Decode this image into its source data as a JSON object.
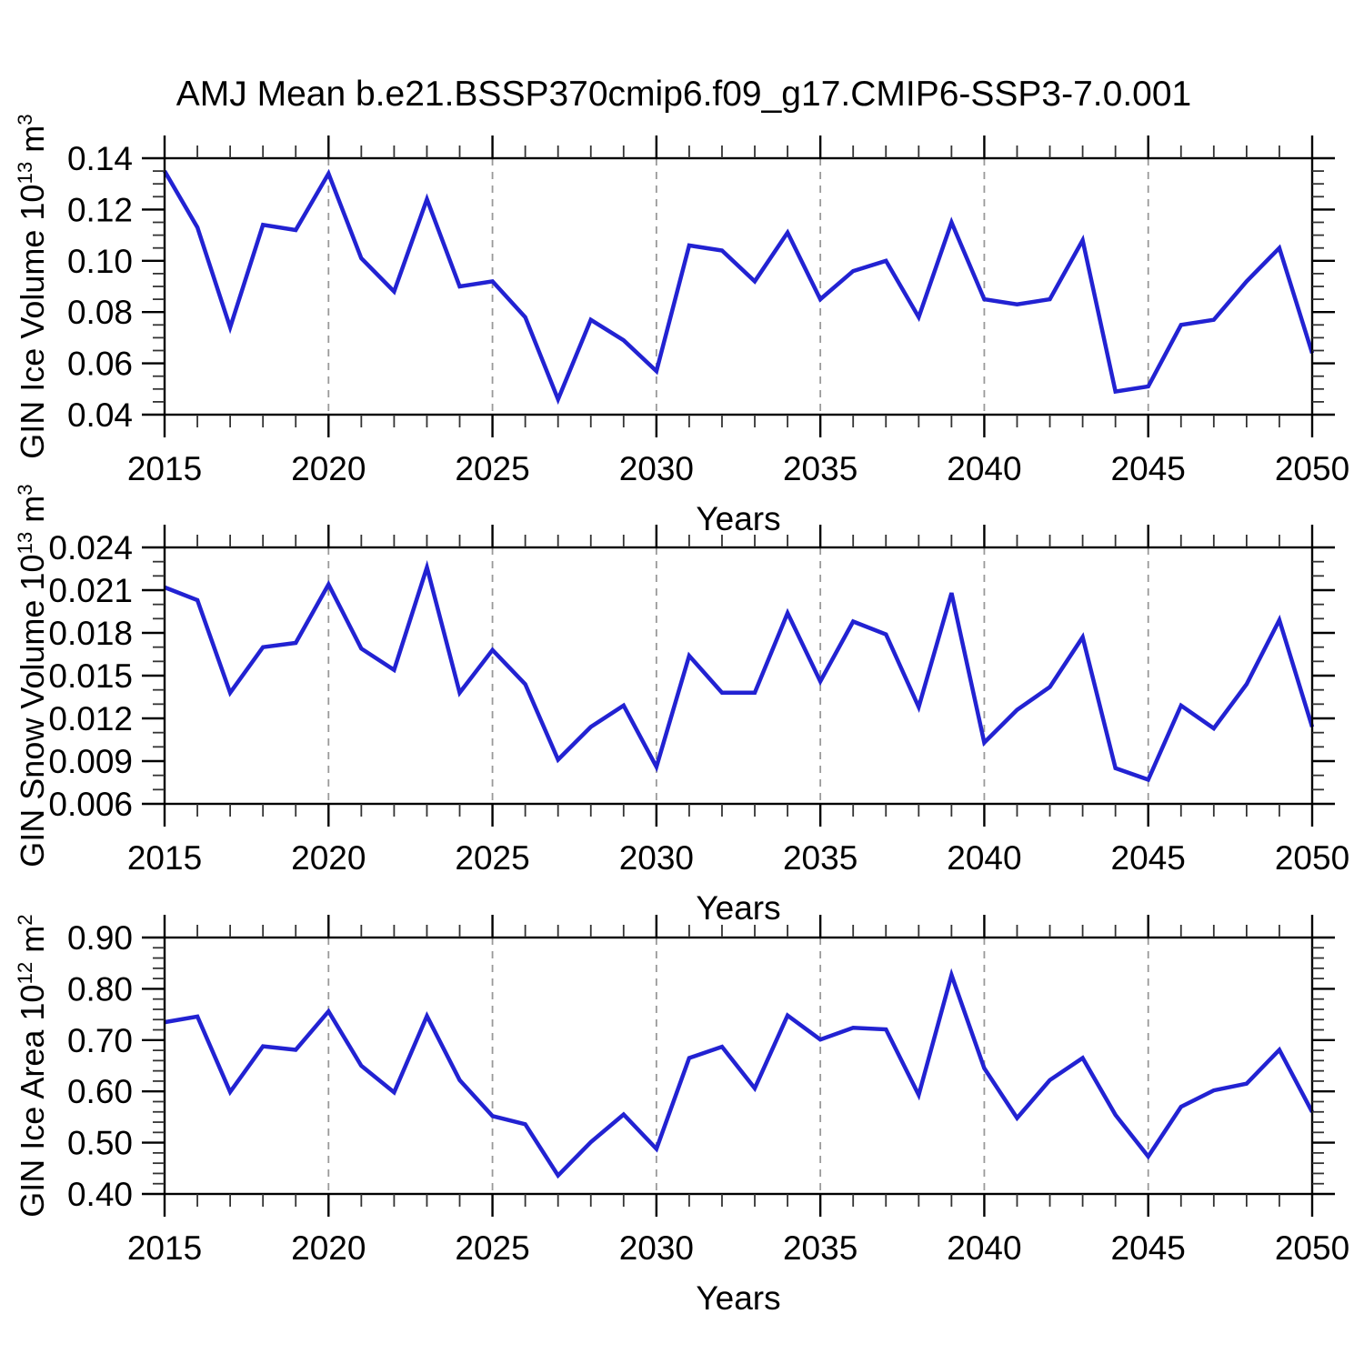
{
  "title": "AMJ Mean b.e21.BSSP370cmip6.f09_g17.CMIP6-SSP3-7.0.001",
  "colors": {
    "line": "#2222d2",
    "frame": "#000000",
    "major_tick": "#000000",
    "minor_tick": "#333333",
    "grid": "#999999",
    "background": "#ffffff"
  },
  "chart_data": [
    {
      "type": "line",
      "name": "gin-ice-volume",
      "ylabel": {
        "text1": "GIN Ice Volume 10",
        "sup1": "13",
        "text2": " m",
        "sup2": "3"
      },
      "xlabel": "Years",
      "x": [
        2015,
        2016,
        2017,
        2018,
        2019,
        2020,
        2021,
        2022,
        2023,
        2024,
        2025,
        2026,
        2027,
        2028,
        2029,
        2030,
        2031,
        2032,
        2033,
        2034,
        2035,
        2036,
        2037,
        2038,
        2039,
        2040,
        2041,
        2042,
        2043,
        2044,
        2045,
        2046,
        2047,
        2048,
        2049,
        2050
      ],
      "values": [
        0.135,
        0.113,
        0.074,
        0.114,
        0.112,
        0.134,
        0.101,
        0.088,
        0.124,
        0.09,
        0.092,
        0.078,
        0.046,
        0.077,
        0.069,
        0.057,
        0.106,
        0.104,
        0.092,
        0.111,
        0.085,
        0.096,
        0.1,
        0.078,
        0.115,
        0.085,
        0.083,
        0.085,
        0.108,
        0.049,
        0.051,
        0.075,
        0.077,
        0.092,
        0.105,
        0.064
      ],
      "xlim": [
        2015,
        2050
      ],
      "ylim": [
        0.04,
        0.14
      ],
      "xticks": [
        2015,
        2020,
        2025,
        2030,
        2035,
        2040,
        2045,
        2050
      ],
      "xtick_labels": [
        "2015",
        "2020",
        "2025",
        "2030",
        "2035",
        "2040",
        "2045",
        "2050"
      ],
      "x_minor_step": 1,
      "yticks": [
        0.04,
        0.06,
        0.08,
        0.1,
        0.12,
        0.14
      ],
      "ytick_labels": [
        "0.04",
        "0.06",
        "0.08",
        "0.10",
        "0.12",
        "0.14"
      ],
      "y_minor_step": 0.005,
      "grid_x": [
        2020,
        2025,
        2030,
        2035,
        2040,
        2045
      ],
      "grid_style": "vertical-dashed",
      "legend": "none"
    },
    {
      "type": "line",
      "name": "gin-snow-volume",
      "ylabel": {
        "text1": "GIN Snow Volume 10",
        "sup1": "13",
        "text2": " m",
        "sup2": "3"
      },
      "xlabel": "Years",
      "x": [
        2015,
        2016,
        2017,
        2018,
        2019,
        2020,
        2021,
        2022,
        2023,
        2024,
        2025,
        2026,
        2027,
        2028,
        2029,
        2030,
        2031,
        2032,
        2033,
        2034,
        2035,
        2036,
        2037,
        2038,
        2039,
        2040,
        2041,
        2042,
        2043,
        2044,
        2045,
        2046,
        2047,
        2048,
        2049,
        2050
      ],
      "values": [
        0.0212,
        0.0203,
        0.0138,
        0.017,
        0.0173,
        0.0214,
        0.0169,
        0.0154,
        0.0226,
        0.0138,
        0.0168,
        0.0144,
        0.0091,
        0.0114,
        0.0129,
        0.0086,
        0.0164,
        0.0138,
        0.0138,
        0.0194,
        0.0146,
        0.0188,
        0.0179,
        0.0128,
        0.0208,
        0.0103,
        0.0126,
        0.0142,
        0.0177,
        0.0085,
        0.0077,
        0.0129,
        0.0113,
        0.0144,
        0.0189,
        0.0114
      ],
      "xlim": [
        2015,
        2050
      ],
      "ylim": [
        0.006,
        0.024
      ],
      "xticks": [
        2015,
        2020,
        2025,
        2030,
        2035,
        2040,
        2045,
        2050
      ],
      "xtick_labels": [
        "2015",
        "2020",
        "2025",
        "2030",
        "2035",
        "2040",
        "2045",
        "2050"
      ],
      "x_minor_step": 1,
      "yticks": [
        0.006,
        0.009,
        0.012,
        0.015,
        0.018,
        0.021,
        0.024
      ],
      "ytick_labels": [
        "0.006",
        "0.009",
        "0.012",
        "0.015",
        "0.018",
        "0.021",
        "0.024"
      ],
      "y_minor_step": 0.001,
      "grid_x": [
        2020,
        2025,
        2030,
        2035,
        2040,
        2045
      ],
      "grid_style": "vertical-dashed",
      "legend": "none"
    },
    {
      "type": "line",
      "name": "gin-ice-area",
      "ylabel": {
        "text1": "GIN Ice Area 10",
        "sup1": "12",
        "text2": " m",
        "sup2": "2"
      },
      "xlabel": "Years",
      "x": [
        2015,
        2016,
        2017,
        2018,
        2019,
        2020,
        2021,
        2022,
        2023,
        2024,
        2025,
        2026,
        2027,
        2028,
        2029,
        2030,
        2031,
        2032,
        2033,
        2034,
        2035,
        2036,
        2037,
        2038,
        2039,
        2040,
        2041,
        2042,
        2043,
        2044,
        2045,
        2046,
        2047,
        2048,
        2049,
        2050
      ],
      "values": [
        0.735,
        0.746,
        0.599,
        0.688,
        0.681,
        0.756,
        0.65,
        0.598,
        0.747,
        0.622,
        0.552,
        0.536,
        0.436,
        0.501,
        0.555,
        0.488,
        0.665,
        0.687,
        0.606,
        0.748,
        0.701,
        0.724,
        0.721,
        0.593,
        0.827,
        0.645,
        0.548,
        0.622,
        0.665,
        0.554,
        0.473,
        0.57,
        0.602,
        0.615,
        0.681,
        0.56
      ],
      "xlim": [
        2015,
        2050
      ],
      "ylim": [
        0.4,
        0.9
      ],
      "xticks": [
        2015,
        2020,
        2025,
        2030,
        2035,
        2040,
        2045,
        2050
      ],
      "xtick_labels": [
        "2015",
        "2020",
        "2025",
        "2030",
        "2035",
        "2040",
        "2045",
        "2050"
      ],
      "x_minor_step": 1,
      "yticks": [
        0.4,
        0.5,
        0.6,
        0.7,
        0.8,
        0.9
      ],
      "ytick_labels": [
        "0.40",
        "0.50",
        "0.60",
        "0.70",
        "0.80",
        "0.90"
      ],
      "y_minor_step": 0.02,
      "grid_x": [
        2020,
        2025,
        2030,
        2035,
        2040,
        2045
      ],
      "grid_style": "vertical-dashed",
      "legend": "none"
    }
  ]
}
